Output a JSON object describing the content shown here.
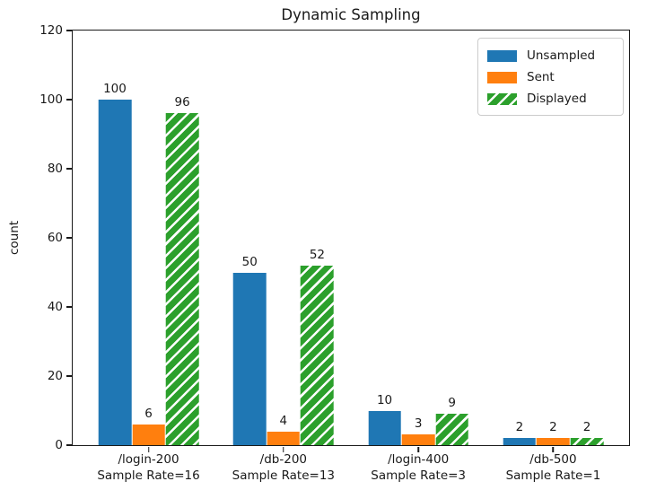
{
  "chart_data": {
    "type": "bar",
    "title": "Dynamic Sampling",
    "xlabel": "",
    "ylabel": "count",
    "ylim": [
      0,
      120
    ],
    "yticks": [
      0,
      20,
      40,
      60,
      80,
      100,
      120
    ],
    "grid": false,
    "legend_position": "upper right",
    "categories": [
      [
        "/login-200",
        "Sample Rate=16"
      ],
      [
        "/db-200",
        "Sample Rate=13"
      ],
      [
        "/login-400",
        "Sample Rate=3"
      ],
      [
        "/db-500",
        "Sample Rate=1"
      ]
    ],
    "series": [
      {
        "name": "Unsampled",
        "color": "#1f77b4",
        "hatch": false,
        "values": [
          100,
          50,
          10,
          2
        ]
      },
      {
        "name": "Sent",
        "color": "#ff7f0e",
        "hatch": false,
        "values": [
          6,
          4,
          3,
          2
        ]
      },
      {
        "name": "Displayed",
        "color": "#2ca02c",
        "hatch": true,
        "values": [
          96,
          52,
          9,
          2
        ]
      }
    ],
    "bar_value_labels": true,
    "hatch_stripe_color": "#ffffff"
  }
}
